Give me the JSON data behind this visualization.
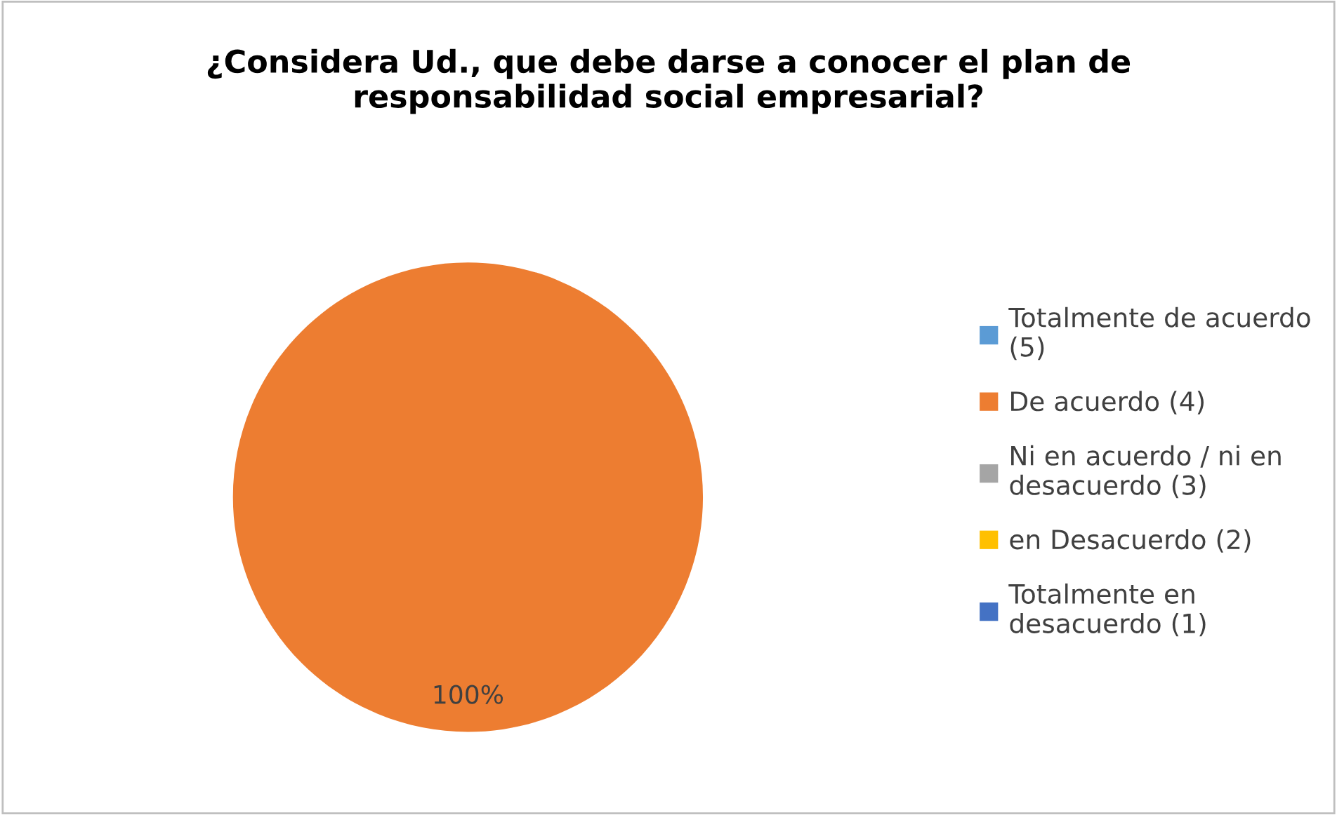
{
  "chart_data": {
    "type": "pie",
    "title": "¿Considera Ud., que debe darse a conocer el plan de responsabilidad social empresarial?",
    "categories": [
      "Totalmente de acuerdo (5)",
      "De acuerdo (4)",
      "Ni en acuerdo / ni en desacuerdo (3)",
      "en Desacuerdo (2)",
      "Totalmente en desacuerdo (1)"
    ],
    "values": [
      0,
      100,
      0,
      0,
      0
    ],
    "colors": [
      "#5b9bd5",
      "#ed7d31",
      "#a5a5a5",
      "#ffc000",
      "#4472c4"
    ],
    "value_labels": [
      null,
      "100%",
      null,
      null,
      null
    ],
    "legend": "right"
  }
}
